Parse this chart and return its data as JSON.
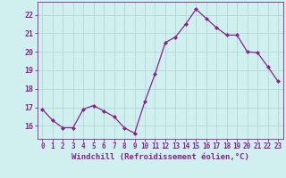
{
  "x": [
    0,
    1,
    2,
    3,
    4,
    5,
    6,
    7,
    8,
    9,
    10,
    11,
    12,
    13,
    14,
    15,
    16,
    17,
    18,
    19,
    20,
    21,
    22,
    23
  ],
  "y": [
    16.9,
    16.3,
    15.9,
    15.9,
    16.9,
    17.1,
    16.8,
    16.5,
    15.9,
    15.6,
    17.3,
    18.8,
    20.5,
    20.8,
    21.5,
    22.3,
    21.8,
    21.3,
    20.9,
    20.9,
    20.0,
    19.95,
    19.2,
    18.4
  ],
  "line_color": "#882288",
  "marker": "D",
  "markersize": 2.0,
  "linewidth": 0.9,
  "xlabel": "Windchill (Refroidissement éolien,°C)",
  "xlabel_fontsize": 6.5,
  "xlabel_color": "#882288",
  "ylabel": "",
  "ylim": [
    15.3,
    22.7
  ],
  "xlim": [
    -0.5,
    23.5
  ],
  "yticks": [
    16,
    17,
    18,
    19,
    20,
    21,
    22
  ],
  "xticks": [
    0,
    1,
    2,
    3,
    4,
    5,
    6,
    7,
    8,
    9,
    10,
    11,
    12,
    13,
    14,
    15,
    16,
    17,
    18,
    19,
    20,
    21,
    22,
    23
  ],
  "tick_color": "#882288",
  "tick_fontsize": 5.5,
  "bg_color": "#d0f0f0",
  "grid_color": "#b0d8d8",
  "spine_color": "#882288"
}
